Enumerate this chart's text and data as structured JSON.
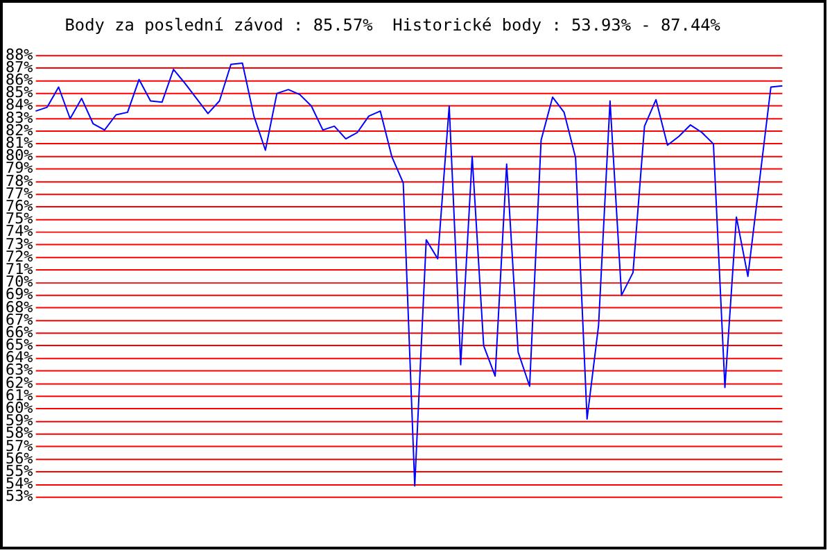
{
  "chart_data": {
    "type": "line",
    "title": "Body za poslední závod : 85.57%  Historické body : 53.93% - 87.44%",
    "categories": [
      null,
      null,
      null,
      null,
      null,
      null,
      null,
      null,
      null,
      null,
      null,
      null,
      null,
      null,
      null,
      null,
      null,
      null,
      null,
      null,
      null,
      null,
      null,
      null,
      null,
      null,
      null,
      null,
      null,
      null,
      null,
      null,
      null,
      null,
      null,
      null,
      null,
      null,
      null,
      null,
      null,
      null,
      null,
      null,
      null,
      null,
      null,
      null,
      null,
      null,
      null,
      null,
      null,
      null,
      null,
      null,
      null,
      null,
      null,
      null,
      null,
      null,
      null,
      null,
      null,
      null
    ],
    "series": [
      {
        "color": "#0000ff",
        "values": [
          83.6,
          83.9,
          85.5,
          83.0,
          84.6,
          82.6,
          82.1,
          83.3,
          83.5,
          86.1,
          84.4,
          84.3,
          86.9,
          85.8,
          84.6,
          83.4,
          84.4,
          87.3,
          87.4,
          83.2,
          80.5,
          85.0,
          85.3,
          84.9,
          84.0,
          82.1,
          82.4,
          81.4,
          81.9,
          83.2,
          83.6,
          80.0,
          77.9,
          53.9,
          73.4,
          71.9,
          84.0,
          63.5,
          80.0,
          65.0,
          62.6,
          79.4,
          64.5,
          61.8,
          81.3,
          84.7,
          83.5,
          79.9,
          59.2,
          66.6,
          84.4,
          69.0,
          70.8,
          82.4,
          84.5,
          80.9,
          81.6,
          82.5,
          81.9,
          81.0,
          61.7,
          75.2,
          70.5,
          78.0,
          85.5,
          85.6
        ]
      }
    ],
    "ylim": [
      53,
      88
    ],
    "yticks": [
      {
        "value": 53,
        "label": "53%"
      },
      {
        "value": 54,
        "label": "54%"
      },
      {
        "value": 55,
        "label": "55%"
      },
      {
        "value": 56,
        "label": "56%"
      },
      {
        "value": 57,
        "label": "57%"
      },
      {
        "value": 58,
        "label": "58%"
      },
      {
        "value": 59,
        "label": "59%"
      },
      {
        "value": 60,
        "label": "60%"
      },
      {
        "value": 61,
        "label": "61%"
      },
      {
        "value": 62,
        "label": "62%"
      },
      {
        "value": 63,
        "label": "63%"
      },
      {
        "value": 64,
        "label": "64%"
      },
      {
        "value": 65,
        "label": "65%"
      },
      {
        "value": 66,
        "label": "66%"
      },
      {
        "value": 67,
        "label": "67%"
      },
      {
        "value": 68,
        "label": "68%"
      },
      {
        "value": 69,
        "label": "69%"
      },
      {
        "value": 70,
        "label": "70%"
      },
      {
        "value": 71,
        "label": "71%"
      },
      {
        "value": 72,
        "label": "72%"
      },
      {
        "value": 73,
        "label": "73%"
      },
      {
        "value": 74,
        "label": "74%"
      },
      {
        "value": 75,
        "label": "75%"
      },
      {
        "value": 76,
        "label": "76%"
      },
      {
        "value": 77,
        "label": "77%"
      },
      {
        "value": 78,
        "label": "78%"
      },
      {
        "value": 79,
        "label": "79%"
      },
      {
        "value": 80,
        "label": "80%"
      },
      {
        "value": 81,
        "label": "81%"
      },
      {
        "value": 82,
        "label": "82%"
      },
      {
        "value": 83,
        "label": "83%"
      },
      {
        "value": 84,
        "label": "84%"
      },
      {
        "value": 85,
        "label": "85%"
      },
      {
        "value": 86,
        "label": "86%"
      },
      {
        "value": 87,
        "label": "87%"
      },
      {
        "value": 88,
        "label": "88%"
      }
    ],
    "grid": "y",
    "tick_labels": "y",
    "legend": false,
    "marker": "none",
    "line_style": "solid"
  }
}
